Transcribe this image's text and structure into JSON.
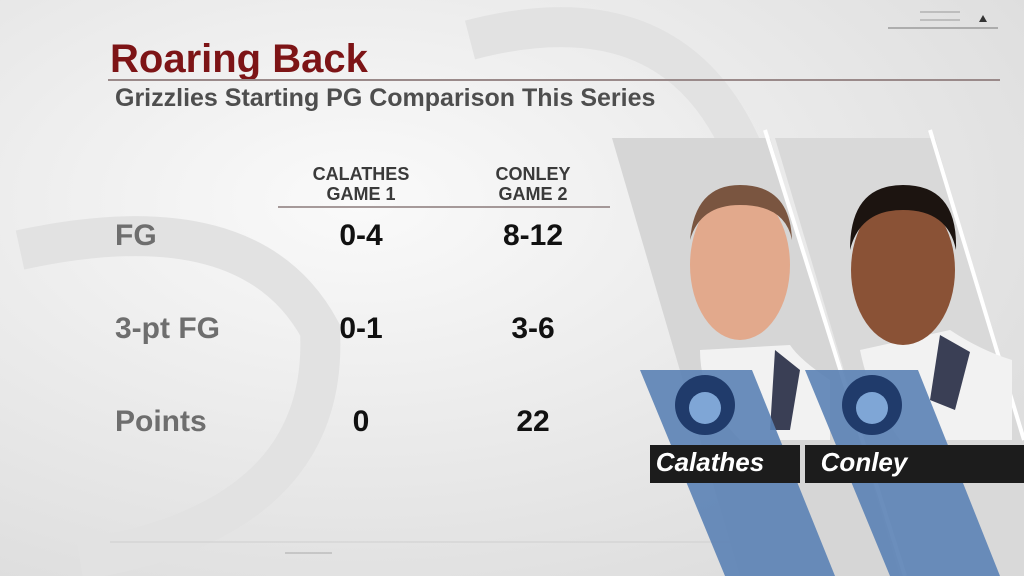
{
  "header": {
    "title": "Roaring Back",
    "subtitle": "Grizzlies Starting PG Comparison This Series"
  },
  "table": {
    "columns": [
      [
        "CALATHES",
        "GAME 1"
      ],
      [
        "CONLEY",
        "GAME 2"
      ]
    ],
    "rows": [
      [
        "FG",
        "0-4",
        "8-12"
      ],
      [
        "3-pt FG",
        "0-1",
        "3-6"
      ],
      [
        "Points",
        0,
        22
      ]
    ]
  },
  "players": [
    "Calathes",
    "Conley"
  ]
}
